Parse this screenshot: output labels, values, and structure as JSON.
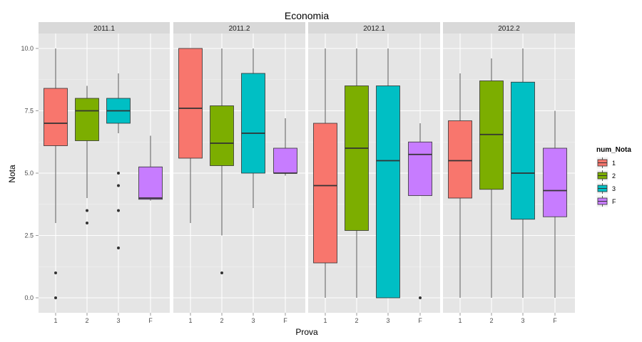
{
  "chart_data": {
    "type": "boxplot",
    "title": "Economia",
    "xlabel": "Prova",
    "ylabel": "Nota",
    "ylim": [
      -0.6,
      10.6
    ],
    "yticks": [
      0.0,
      2.5,
      5.0,
      7.5,
      10.0
    ],
    "ytick_labels": [
      "0.0",
      "2.5",
      "5.0",
      "7.5",
      "10.0"
    ],
    "categories": [
      "1",
      "2",
      "3",
      "F"
    ],
    "colors": {
      "1": "#f8766d",
      "2": "#7cae00",
      "3": "#00bfc4",
      "F": "#c77cff"
    },
    "legend": {
      "title": "num_Nota",
      "position": "right",
      "items": [
        "1",
        "2",
        "3",
        "F"
      ]
    },
    "facets": [
      {
        "label": "2011.1",
        "boxes": [
          {
            "cat": "1",
            "min": 3.0,
            "q1": 6.1,
            "median": 7.0,
            "q3": 8.4,
            "max": 10.0,
            "outliers": [
              1.0,
              0.0
            ]
          },
          {
            "cat": "2",
            "min": 4.0,
            "q1": 6.3,
            "median": 7.5,
            "q3": 8.0,
            "max": 8.5,
            "outliers": [
              3.5,
              3.0
            ]
          },
          {
            "cat": "3",
            "min": 6.6,
            "q1": 7.0,
            "median": 7.5,
            "q3": 8.0,
            "max": 9.0,
            "outliers": [
              5.0,
              4.5,
              3.5,
              2.0
            ]
          },
          {
            "cat": "F",
            "min": 3.9,
            "q1": 3.95,
            "median": 4.0,
            "q3": 5.25,
            "max": 6.5,
            "outliers": []
          }
        ]
      },
      {
        "label": "2011.2",
        "boxes": [
          {
            "cat": "1",
            "min": 3.0,
            "q1": 5.6,
            "median": 7.6,
            "q3": 10.0,
            "max": 10.0,
            "outliers": []
          },
          {
            "cat": "2",
            "min": 2.5,
            "q1": 5.3,
            "median": 6.2,
            "q3": 7.7,
            "max": 10.0,
            "outliers": [
              1.0
            ]
          },
          {
            "cat": "3",
            "min": 3.6,
            "q1": 5.0,
            "median": 6.6,
            "q3": 9.0,
            "max": 10.0,
            "outliers": []
          },
          {
            "cat": "F",
            "min": 4.9,
            "q1": 5.0,
            "median": 5.0,
            "q3": 6.0,
            "max": 7.2,
            "outliers": []
          }
        ]
      },
      {
        "label": "2012.1",
        "boxes": [
          {
            "cat": "1",
            "min": 0.0,
            "q1": 1.4,
            "median": 4.5,
            "q3": 7.0,
            "max": 10.0,
            "outliers": []
          },
          {
            "cat": "2",
            "min": 0.0,
            "q1": 2.7,
            "median": 6.0,
            "q3": 8.5,
            "max": 10.0,
            "outliers": []
          },
          {
            "cat": "3",
            "min": 0.0,
            "q1": 0.0,
            "median": 5.5,
            "q3": 8.5,
            "max": 10.0,
            "outliers": []
          },
          {
            "cat": "F",
            "min": 4.1,
            "q1": 4.1,
            "median": 5.75,
            "q3": 6.25,
            "max": 7.0,
            "outliers": [
              0.0
            ]
          }
        ]
      },
      {
        "label": "2012.2",
        "boxes": [
          {
            "cat": "1",
            "min": 0.0,
            "q1": 4.0,
            "median": 5.5,
            "q3": 7.1,
            "max": 9.0,
            "outliers": []
          },
          {
            "cat": "2",
            "min": 0.0,
            "q1": 4.35,
            "median": 6.55,
            "q3": 8.7,
            "max": 9.6,
            "outliers": []
          },
          {
            "cat": "3",
            "min": 0.0,
            "q1": 3.15,
            "median": 5.0,
            "q3": 8.65,
            "max": 10.0,
            "outliers": []
          },
          {
            "cat": "F",
            "min": 0.0,
            "q1": 3.25,
            "median": 4.3,
            "q3": 6.0,
            "max": 7.5,
            "outliers": []
          }
        ]
      }
    ]
  }
}
